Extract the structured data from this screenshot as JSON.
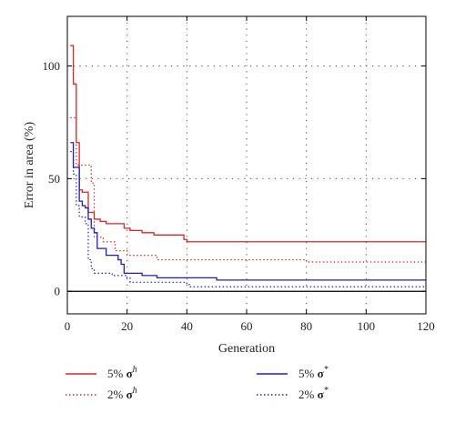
{
  "chart_data": {
    "type": "line",
    "xlabel": "Generation",
    "ylabel": "Error in area (%)",
    "xlim": [
      0,
      120
    ],
    "ylim": [
      -10,
      122
    ],
    "x_ticks": [
      0,
      20,
      40,
      60,
      80,
      100,
      120
    ],
    "y_ticks": [
      0,
      50,
      100
    ],
    "grid": "dotted",
    "legend_position": "bottom",
    "series": [
      {
        "name": "5% σh",
        "label_pct": "5%",
        "label_sym": "σ",
        "label_sup": "h",
        "color": "#d62728",
        "dash": "solid",
        "step": true,
        "points": [
          [
            1,
            109
          ],
          [
            2,
            92
          ],
          [
            3,
            66
          ],
          [
            4,
            45
          ],
          [
            5,
            44
          ],
          [
            7,
            35
          ],
          [
            9,
            32
          ],
          [
            11,
            31
          ],
          [
            13,
            30
          ],
          [
            19,
            28
          ],
          [
            21,
            27
          ],
          [
            25,
            26
          ],
          [
            29,
            25
          ],
          [
            39,
            23
          ],
          [
            40,
            22
          ],
          [
            80,
            22
          ],
          [
            120,
            22
          ]
        ]
      },
      {
        "name": "2% σh",
        "label_pct": "2%",
        "label_sym": "σ",
        "label_sup": "h",
        "color": "#d62728",
        "dash": "dotted",
        "step": true,
        "points": [
          [
            1,
            77
          ],
          [
            3,
            56
          ],
          [
            8,
            48
          ],
          [
            9,
            24
          ],
          [
            12,
            22
          ],
          [
            16,
            18
          ],
          [
            20,
            16
          ],
          [
            30,
            14
          ],
          [
            80,
            13
          ],
          [
            120,
            13
          ]
        ]
      },
      {
        "name": "5% σ*",
        "label_pct": "5%",
        "label_sym": "σ",
        "label_sup": "*",
        "color": "#1f1fb4",
        "dash": "solid",
        "step": true,
        "points": [
          [
            1,
            66
          ],
          [
            2,
            55
          ],
          [
            4,
            40
          ],
          [
            5,
            38
          ],
          [
            6,
            37
          ],
          [
            7,
            32
          ],
          [
            8,
            28
          ],
          [
            9,
            26
          ],
          [
            10,
            19
          ],
          [
            13,
            16
          ],
          [
            17,
            14
          ],
          [
            18,
            12
          ],
          [
            19,
            8
          ],
          [
            25,
            7
          ],
          [
            30,
            6
          ],
          [
            40,
            6
          ],
          [
            50,
            5
          ],
          [
            120,
            5
          ]
        ]
      },
      {
        "name": "2% σ*",
        "label_pct": "2%",
        "label_sym": "σ",
        "label_sup": "*",
        "color": "#1f1fb4",
        "dash": "dotted",
        "step": true,
        "points": [
          [
            1,
            62
          ],
          [
            2,
            52
          ],
          [
            3,
            38
          ],
          [
            4,
            33
          ],
          [
            6,
            30
          ],
          [
            7,
            14
          ],
          [
            8,
            10
          ],
          [
            9,
            8
          ],
          [
            15,
            7
          ],
          [
            20,
            6
          ],
          [
            21,
            4
          ],
          [
            40,
            3
          ],
          [
            41,
            2
          ],
          [
            120,
            2
          ]
        ]
      }
    ]
  }
}
